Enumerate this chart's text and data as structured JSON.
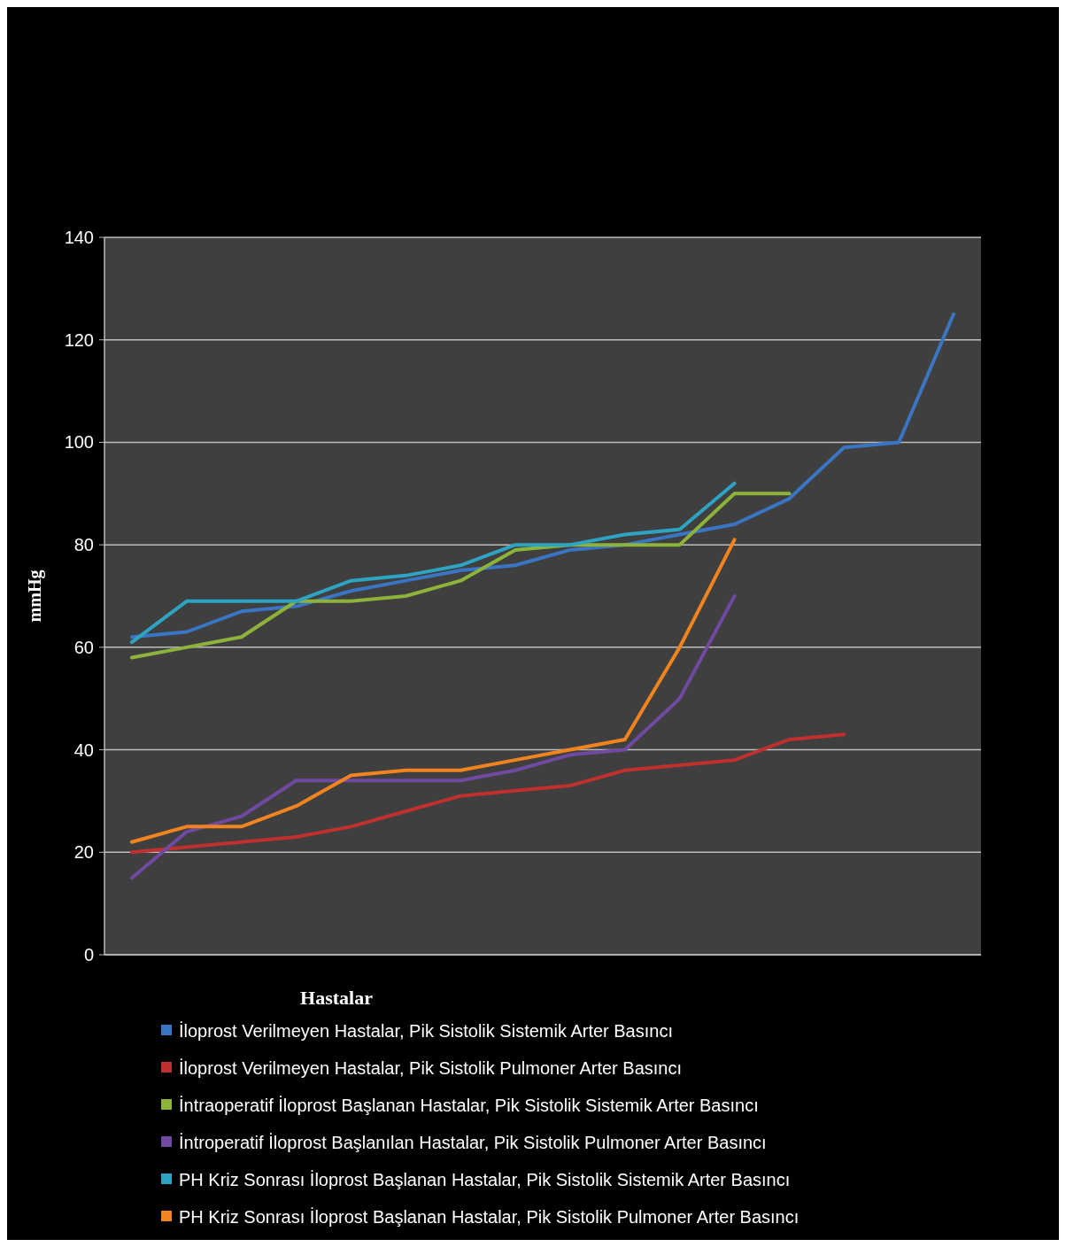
{
  "chart_data": {
    "type": "line",
    "ylabel": "mmHg",
    "xlabel": "Hastalar",
    "categories": [
      null,
      null,
      null,
      null,
      null,
      null,
      null,
      null,
      null,
      null,
      null,
      null,
      null,
      null,
      null,
      null
    ],
    "ylim": [
      0,
      140
    ],
    "yticks": [
      0,
      20,
      40,
      60,
      80,
      100,
      120,
      140
    ],
    "grid": "y",
    "legend": "bottom",
    "marker": "none",
    "line_style": "solid",
    "series": [
      {
        "name": "İloprost Verilmeyen Hastalar, Pik Sistolik Sistemik Arter Basıncı",
        "color": "#3a75c4",
        "values": [
          62,
          63,
          67,
          68,
          71,
          73,
          75,
          76,
          79,
          80,
          82,
          84,
          89,
          99,
          100,
          125
        ]
      },
      {
        "name": "İloprost Verilmeyen Hastalar, Pik Sistolik Pulmoner Arter Basıncı",
        "color": "#c0302e",
        "values": [
          20,
          21,
          22,
          23,
          25,
          28,
          31,
          32,
          33,
          36,
          37,
          38,
          42,
          43,
          null,
          null
        ]
      },
      {
        "name": "İntraoperatif İloprost Başlanan Hastalar, Pik Sistolik Sistemik Arter Basıncı",
        "color": "#8db33a",
        "values": [
          58,
          60,
          62,
          69,
          69,
          70,
          73,
          79,
          80,
          80,
          80,
          90,
          90,
          null,
          null,
          null
        ]
      },
      {
        "name": "İntroperatif İloprost Başlanılan Hastalar, Pik Sistolik Pulmoner Arter Basıncı",
        "color": "#7049a0",
        "values": [
          15,
          24,
          27,
          34,
          34,
          34,
          34,
          36,
          39,
          40,
          50,
          70,
          null,
          null,
          null,
          null
        ]
      },
      {
        "name": "PH Kriz Sonrası İloprost Başlanan Hastalar, Pik Sistolik Sistemik Arter Basıncı",
        "color": "#2ea3c2",
        "values": [
          61,
          69,
          69,
          69,
          73,
          74,
          76,
          80,
          80,
          82,
          83,
          92,
          null,
          null,
          null,
          null
        ]
      },
      {
        "name": "PH Kriz Sonrası İloprost Başlanan Hastalar, Pik Sistolik Pulmoner Arter Basıncı",
        "color": "#f2841f",
        "values": [
          22,
          25,
          25,
          29,
          35,
          36,
          36,
          38,
          40,
          42,
          60,
          81,
          null,
          null,
          null,
          null
        ]
      }
    ]
  }
}
